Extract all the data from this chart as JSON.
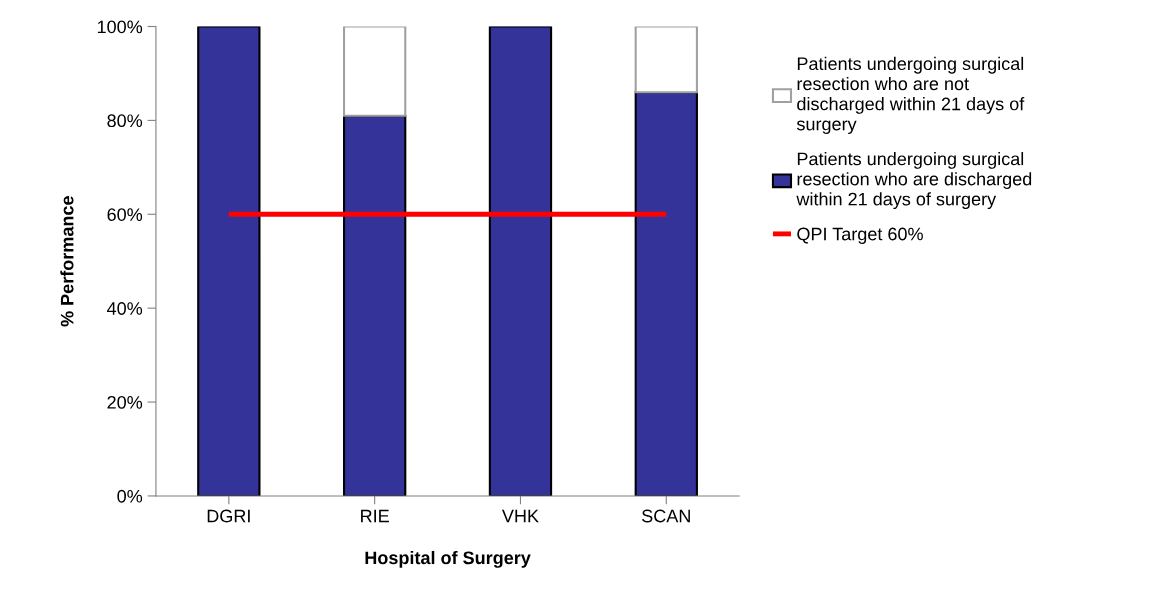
{
  "chart_data": {
    "type": "bar",
    "stacked": true,
    "xlabel": "Hospital of Surgery",
    "ylabel": "% Performance",
    "categories": [
      "DGRI",
      "RIE",
      "VHK",
      "SCAN"
    ],
    "series": [
      {
        "name": "Patients undergoing surgical resection who are discharged within 21 days of surgery",
        "color": "#333399",
        "values": [
          100,
          81,
          100,
          86
        ]
      },
      {
        "name": "Patients undergoing surgical resection who are not discharged within 21 days of surgery",
        "color": "#ffffff",
        "values": [
          null,
          19,
          null,
          14
        ]
      },
      {
        "name": "QPI Target 60%",
        "type": "line",
        "color": "#ff0000",
        "values": [
          60,
          60,
          60,
          60
        ]
      }
    ],
    "ylim": [
      0,
      100
    ],
    "yticks": [
      {
        "value": 0,
        "label": "0%"
      },
      {
        "value": 20,
        "label": "20%"
      },
      {
        "value": 40,
        "label": "40%"
      },
      {
        "value": 60,
        "label": "60%"
      },
      {
        "value": 80,
        "label": "80%"
      },
      {
        "value": 100,
        "label": "100%"
      }
    ],
    "grid": false,
    "legend": "right",
    "marker": "none"
  }
}
